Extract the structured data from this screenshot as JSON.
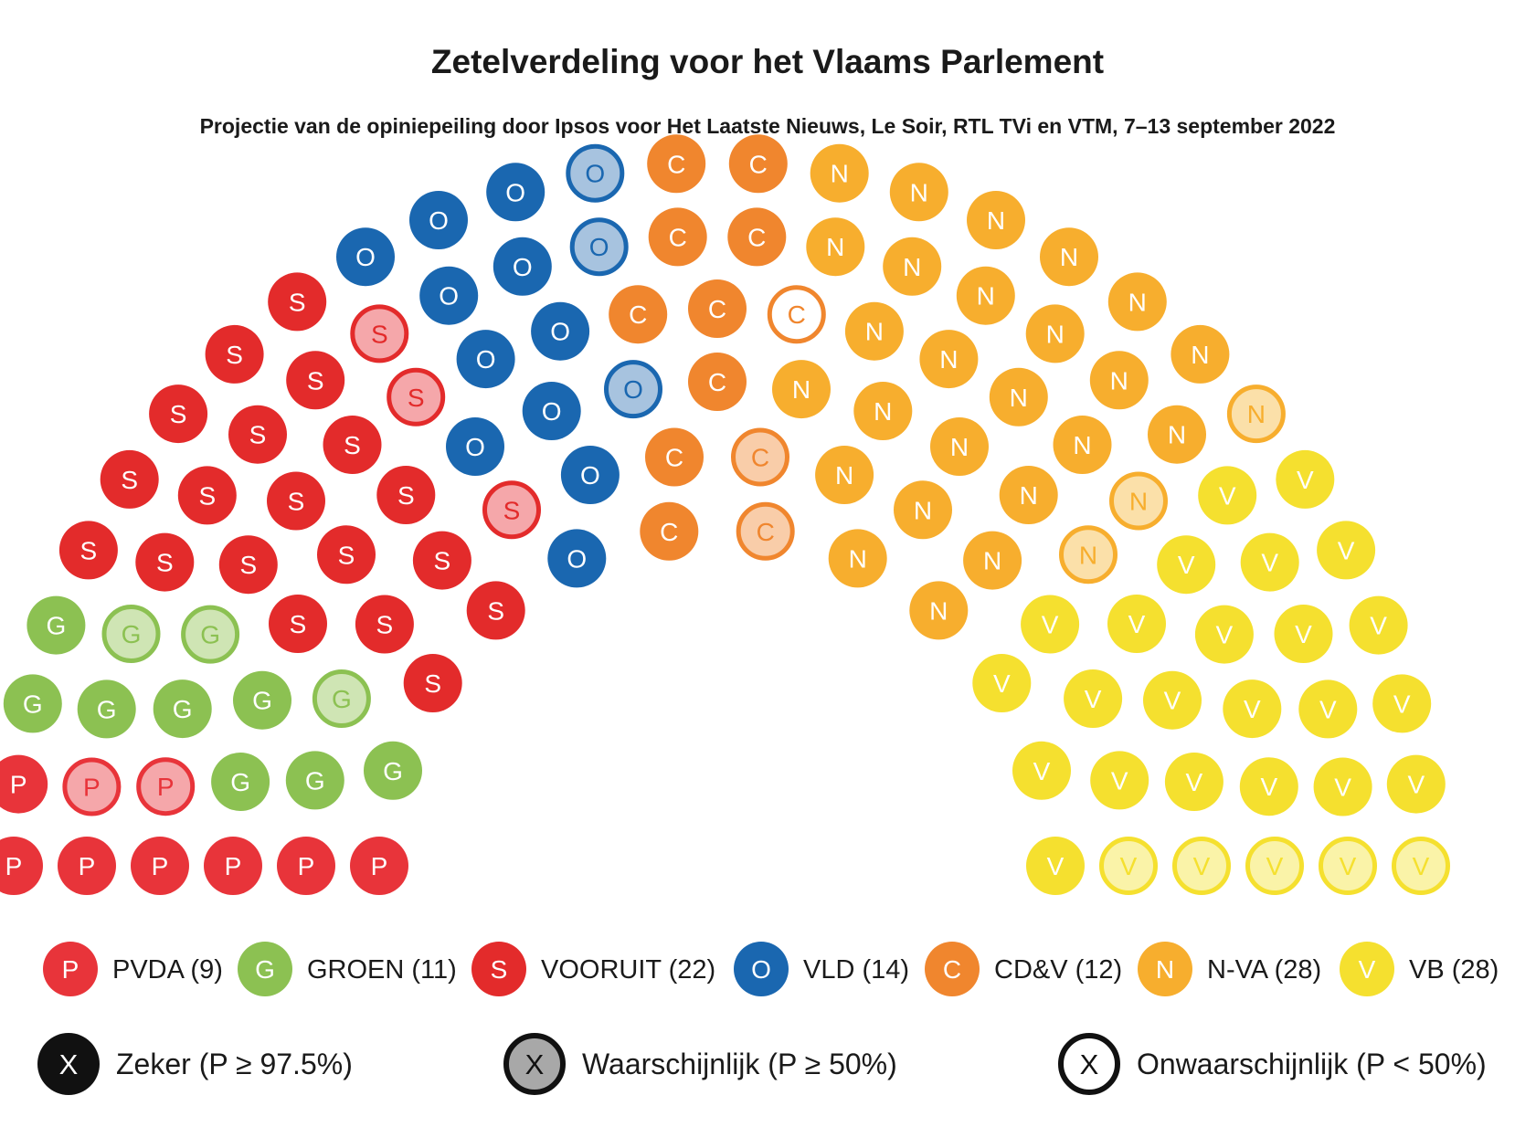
{
  "chart_data": {
    "type": "parliament",
    "title": "Zetelverdeling voor het Vlaams Parlement",
    "subtitle": "Projectie van de opiniepeiling door Ipsos voor Het Laatste Nieuws, Le Soir, RTL TVi en VTM, 7–13 september 2022",
    "parties": [
      {
        "key": "P",
        "name": "PVDA",
        "label": "PVDA (9)",
        "seats": 9,
        "color": "#e8343a",
        "light": "#f5a7aa",
        "zeker": 7,
        "waarschijnlijk": 2,
        "onwaarschijnlijk": 0
      },
      {
        "key": "G",
        "name": "GROEN",
        "label": "GROEN (11)",
        "seats": 11,
        "color": "#8cc152",
        "light": "#cfe5b4",
        "zeker": 8,
        "waarschijnlijk": 3,
        "onwaarschijnlijk": 0
      },
      {
        "key": "S",
        "name": "VOORUIT",
        "label": "VOORUIT (22)",
        "seats": 22,
        "color": "#e32b2b",
        "light": "#f5a7aa",
        "zeker": 19,
        "waarschijnlijk": 3,
        "onwaarschijnlijk": 0
      },
      {
        "key": "O",
        "name": "VLD",
        "label": "VLD (14)",
        "seats": 14,
        "color": "#1a67b0",
        "light": "#a7c3df",
        "zeker": 11,
        "waarschijnlijk": 3,
        "onwaarschijnlijk": 0
      },
      {
        "key": "C",
        "name": "CD&V",
        "label": "CD&V (12)",
        "seats": 12,
        "color": "#f0862e",
        "light": "#f9cda9",
        "zeker": 9,
        "waarschijnlijk": 2,
        "onwaarschijnlijk": 1
      },
      {
        "key": "N",
        "name": "N-VA",
        "label": "N-VA (28)",
        "seats": 28,
        "color": "#f7ae2e",
        "light": "#fbe0a9",
        "zeker": 25,
        "waarschijnlijk": 3,
        "onwaarschijnlijk": 0
      },
      {
        "key": "V",
        "name": "VB",
        "label": "VB (28)",
        "seats": 28,
        "color": "#f5e02f",
        "light": "#faf3a8",
        "zeker": 23,
        "waarschijnlijk": 5,
        "onwaarschijnlijk": 0
      }
    ],
    "certainty_legend": [
      {
        "key": "zeker",
        "letter": "X",
        "label": "Zeker (P ≥ 97.5%)"
      },
      {
        "key": "waarschijnlijk",
        "letter": "X",
        "label": "Waarschijnlijk (P ≥ 50%)"
      },
      {
        "key": "onwaarschijnlijk",
        "letter": "X",
        "label": "Onwaarschijnlijk (P < 50%)"
      }
    ]
  }
}
